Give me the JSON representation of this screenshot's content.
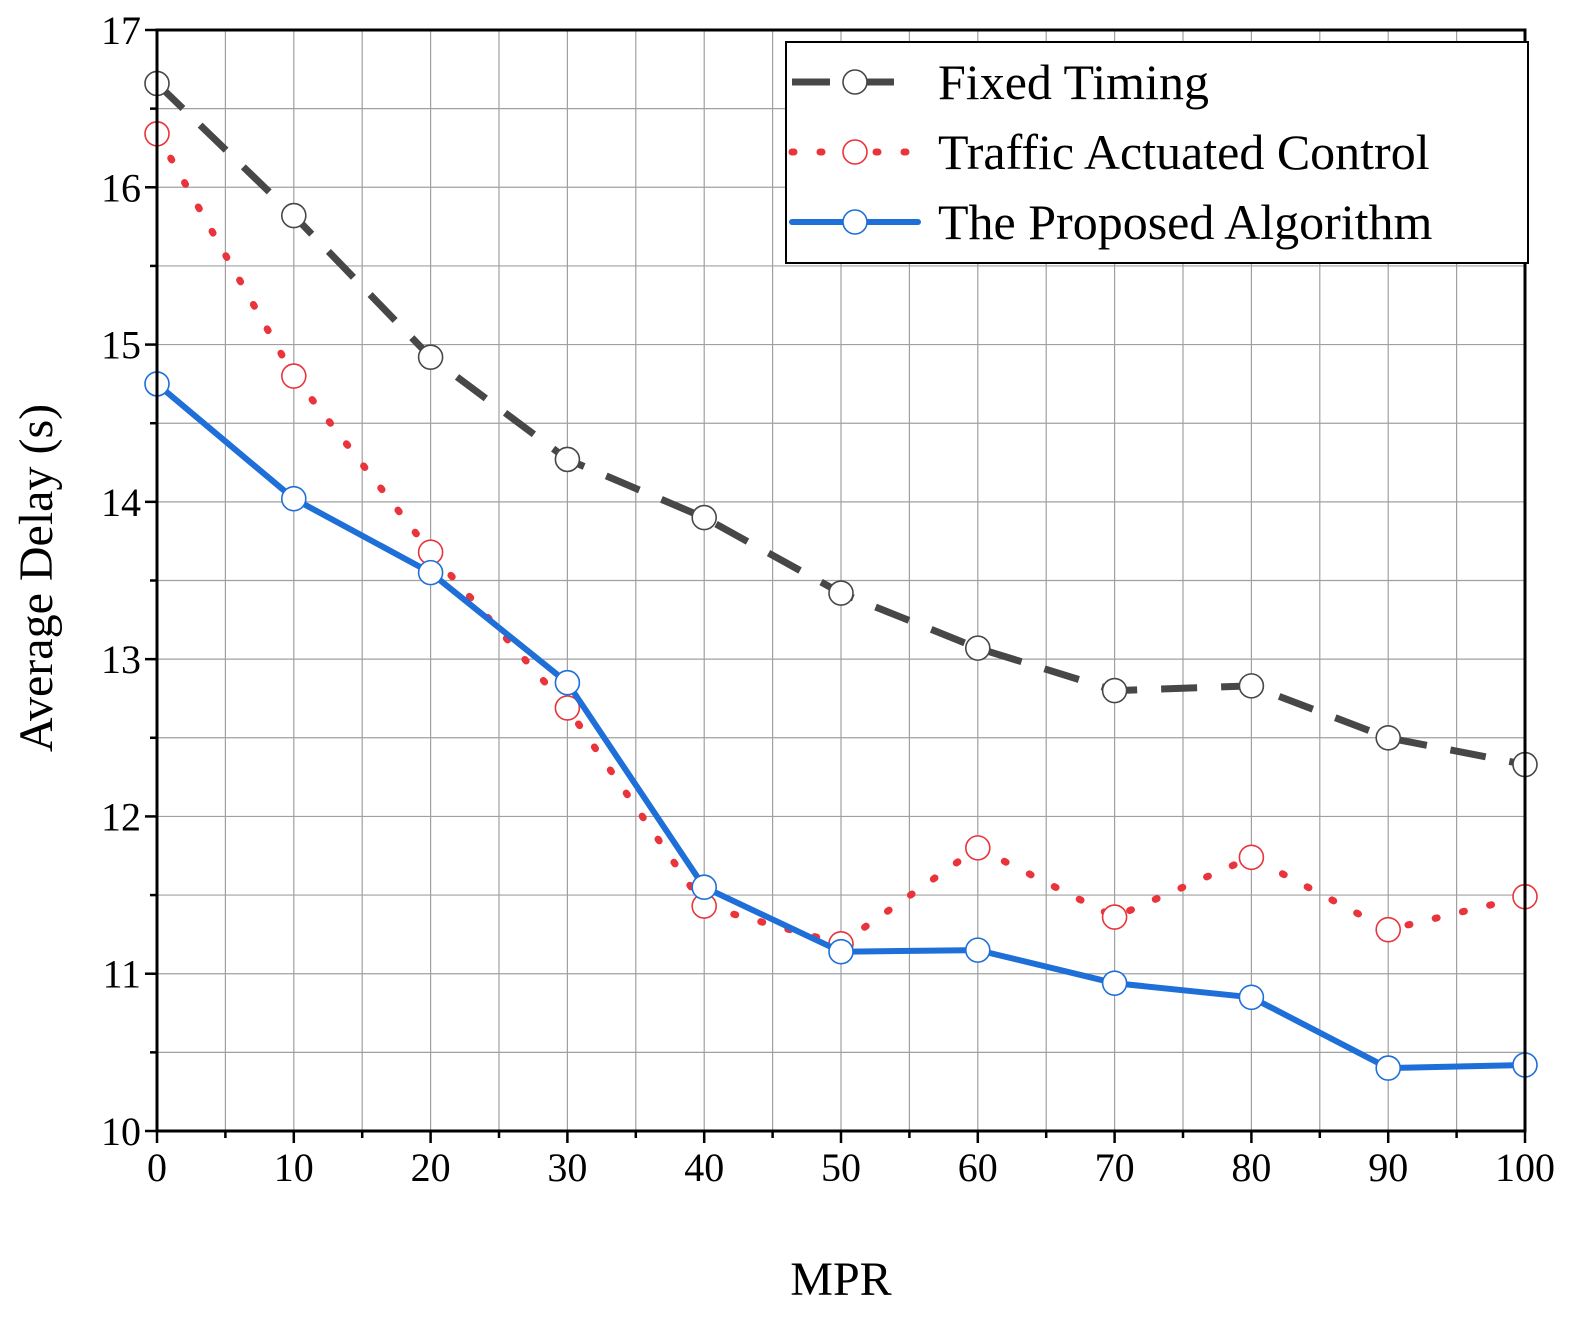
{
  "colors": {
    "fixed_timing": "#474747",
    "traffic_actuated": "#e8343a",
    "proposed": "#1f6fd8",
    "grid": "#a0a0a0",
    "axis": "#000000"
  },
  "chart_data": {
    "type": "line",
    "title": "",
    "xlabel": "MPR",
    "ylabel": "Average Delay (s)",
    "xlim": [
      0,
      100
    ],
    "ylim": [
      10,
      17
    ],
    "grid": true,
    "x_ticks": [
      "0",
      "10",
      "20",
      "30",
      "40",
      "50",
      "60",
      "70",
      "80",
      "90",
      "100"
    ],
    "y_ticks": [
      "10",
      "11",
      "12",
      "13",
      "14",
      "15",
      "16",
      "17"
    ],
    "legend_position": "top-right",
    "x": [
      0,
      10,
      20,
      30,
      40,
      50,
      60,
      70,
      80,
      90,
      100
    ],
    "series": [
      {
        "name": "Fixed Timing",
        "style": "dashed",
        "color": "#474747",
        "values": [
          16.66,
          15.82,
          14.92,
          14.27,
          13.9,
          13.42,
          13.07,
          12.8,
          12.83,
          12.5,
          12.33
        ]
      },
      {
        "name": "Traffic Actuated Control",
        "style": "dotted",
        "color": "#e8343a",
        "values": [
          16.34,
          14.8,
          13.68,
          12.69,
          11.43,
          11.19,
          11.8,
          11.36,
          11.74,
          11.28,
          11.49
        ]
      },
      {
        "name": "The Proposed Algorithm",
        "style": "solid",
        "color": "#1f6fd8",
        "values": [
          14.75,
          14.02,
          13.55,
          12.85,
          11.55,
          11.14,
          11.15,
          10.94,
          10.85,
          10.4,
          10.42
        ]
      }
    ]
  }
}
